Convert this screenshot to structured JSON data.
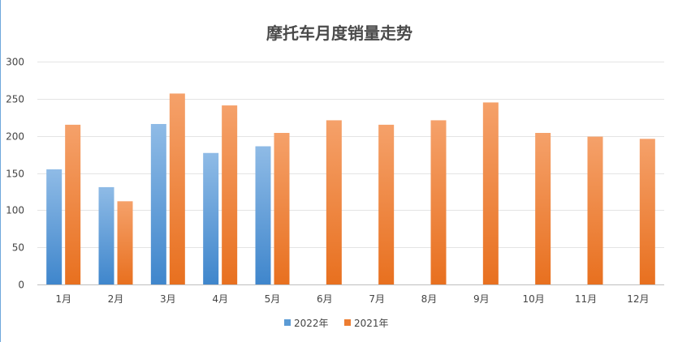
{
  "chart_data": {
    "type": "bar",
    "title": "摩托车月度销量走势",
    "categories": [
      "1月",
      "2月",
      "3月",
      "4月",
      "5月",
      "6月",
      "7月",
      "8月",
      "9月",
      "10月",
      "11月",
      "12月"
    ],
    "series": [
      {
        "name": "2022年",
        "color": "#5b9bd5",
        "values": [
          155,
          131,
          216,
          177,
          186,
          null,
          null,
          null,
          null,
          null,
          null,
          null
        ]
      },
      {
        "name": "2021年",
        "color": "#ed7d31",
        "values": [
          215,
          112,
          257,
          241,
          204,
          221,
          215,
          221,
          245,
          204,
          199,
          196
        ]
      }
    ],
    "ylim": [
      0,
      300
    ],
    "yticks": [
      0,
      50,
      100,
      150,
      200,
      250,
      300
    ],
    "grid": true,
    "legend_position": "bottom"
  }
}
